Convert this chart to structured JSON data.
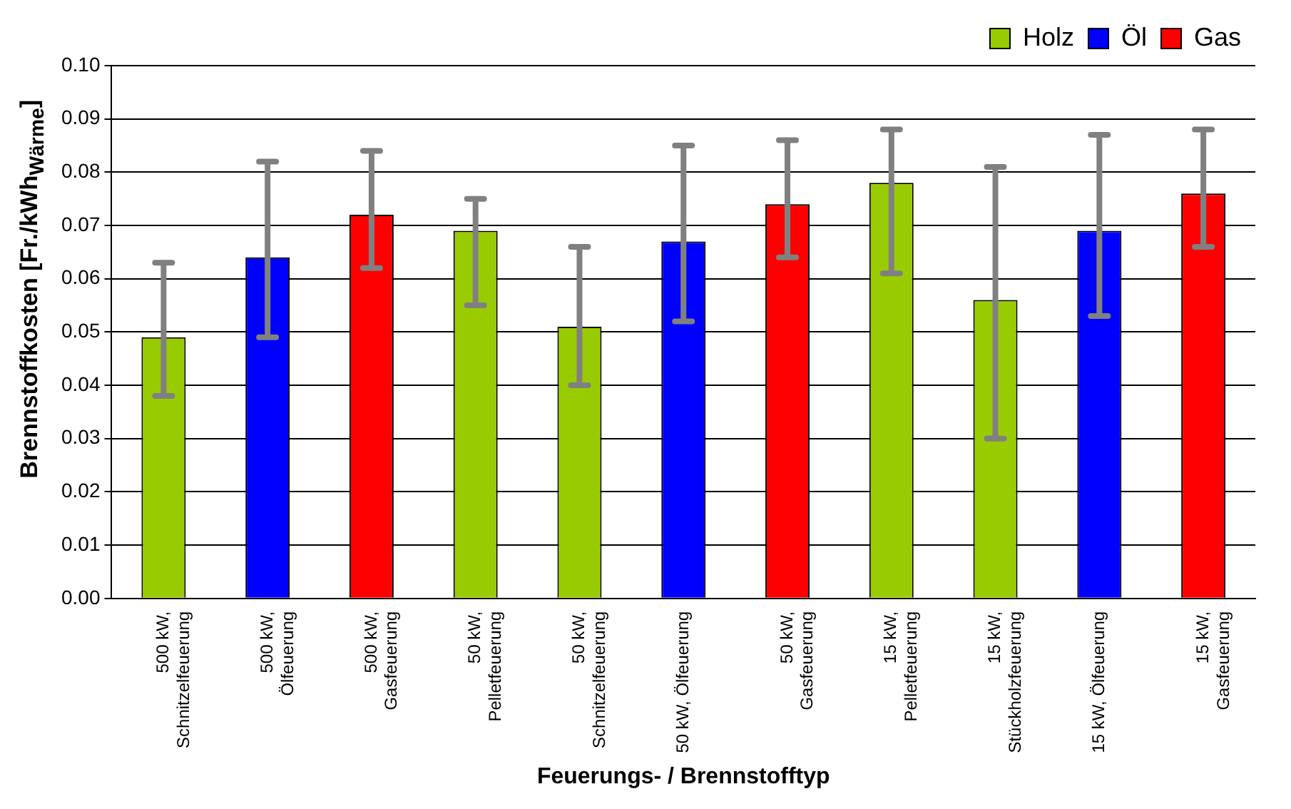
{
  "chart_data": {
    "type": "bar",
    "xlabel": "Feuerungs- / Brennstofftyp",
    "ylabel": "Brennstoffkosten [Fr./kWh$_{Wärme}$]",
    "categories": [
      "500 kW, Schnitzelfeuerung",
      "500 kW, Ölfeuerung",
      "500 kW, Gasfeuerung",
      "50 kW, Pelletfeuerung",
      "50 kW, Schnitzelfeuerung",
      "50 kW, Ölfeuerung",
      "50 kW, Gasfeuerung",
      "15 kW, Pelletfeuerung",
      "15 kW, Stückholzfeuerung",
      "15 kW, Ölfeuerung",
      "15 kW, Gasfeuerung"
    ],
    "series": [
      {
        "name": "Holz",
        "color": "#99cc00",
        "values": [
          0.049,
          null,
          null,
          0.069,
          0.051,
          null,
          null,
          0.078,
          0.056,
          null,
          null
        ],
        "errors": [
          [
            0.038,
            0.063
          ],
          null,
          null,
          [
            0.055,
            0.075
          ],
          [
            0.04,
            0.066
          ],
          null,
          null,
          [
            0.061,
            0.088
          ],
          [
            0.03,
            0.081
          ],
          null,
          null
        ]
      },
      {
        "name": "Öl",
        "color": "#0000ff",
        "values": [
          null,
          0.064,
          null,
          null,
          null,
          0.067,
          null,
          null,
          null,
          0.069,
          null
        ],
        "errors": [
          null,
          [
            0.049,
            0.082
          ],
          null,
          null,
          null,
          [
            0.052,
            0.085
          ],
          null,
          null,
          null,
          [
            0.053,
            0.087
          ],
          null
        ]
      },
      {
        "name": "Gas",
        "color": "#ff0000",
        "values": [
          null,
          null,
          0.072,
          null,
          null,
          null,
          0.074,
          null,
          null,
          null,
          0.076
        ],
        "errors": [
          null,
          null,
          [
            0.062,
            0.084
          ],
          null,
          null,
          null,
          [
            0.064,
            0.086
          ],
          null,
          null,
          null,
          [
            0.066,
            0.088
          ]
        ]
      }
    ],
    "ylim": [
      0,
      0.1
    ],
    "yticks": [
      {
        "value": 0,
        "label": "0.00"
      },
      0.01,
      0.02,
      0.03,
      0.04,
      0.05,
      0.06,
      0.07,
      0.08,
      0.09,
      {
        "value": 0.1,
        "label": "0.10"
      }
    ],
    "grid": "y",
    "legend": "top right"
  }
}
